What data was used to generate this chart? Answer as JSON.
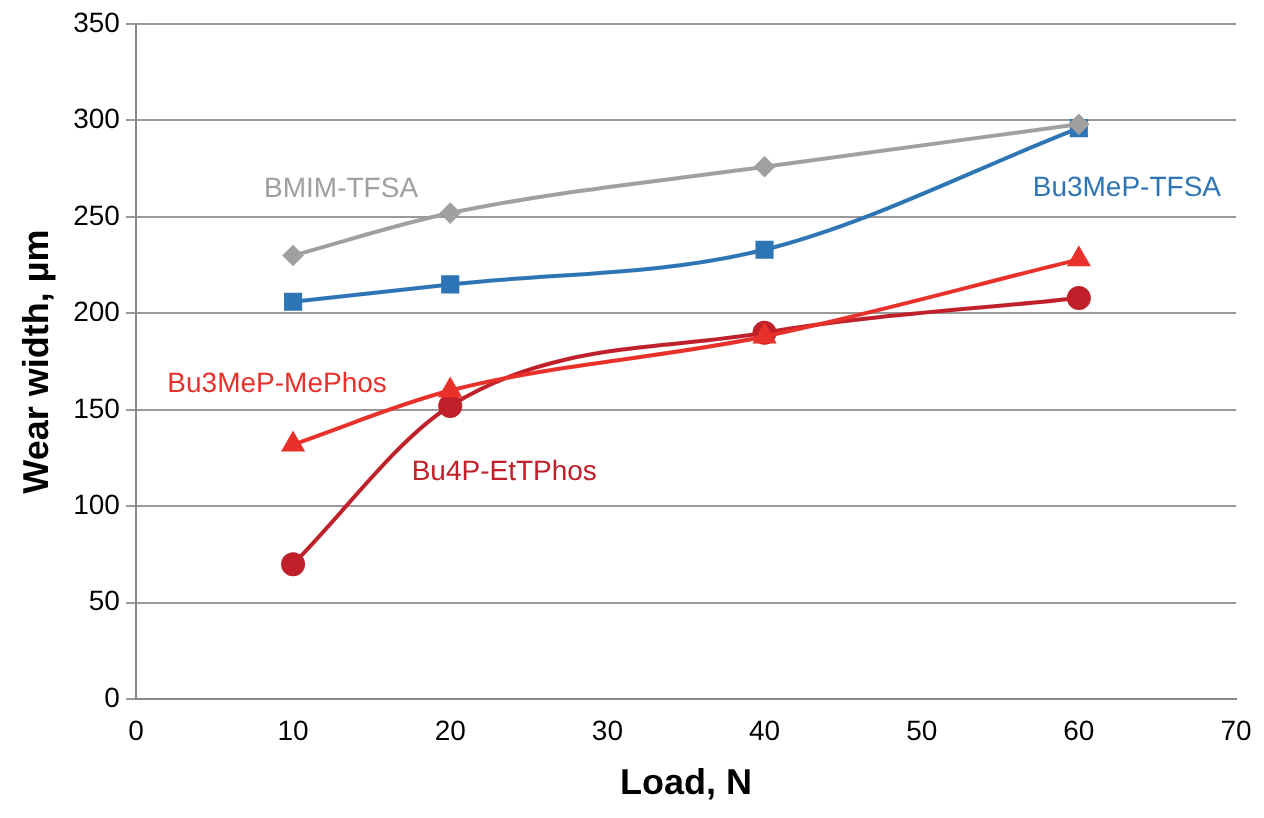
{
  "chart_data": {
    "type": "line",
    "xlabel": "Load, N",
    "ylabel": "Wear width, µm",
    "x": [
      10,
      20,
      40,
      60
    ],
    "xlim": [
      0,
      70
    ],
    "xticks": [
      0,
      10,
      20,
      30,
      40,
      50,
      60,
      70
    ],
    "ylim": [
      0,
      350
    ],
    "yticks": [
      0,
      50,
      100,
      150,
      200,
      250,
      300,
      350
    ],
    "grid": "y",
    "legend": false,
    "series": [
      {
        "name": "BMIM-TFSA",
        "color": "#a0a0a0",
        "marker": "diamond",
        "values": [
          230,
          252,
          276,
          298
        ]
      },
      {
        "name": "Bu3MeP-TFSA",
        "color": "#2e75b6",
        "marker": "square",
        "values": [
          206,
          215,
          233,
          296
        ]
      },
      {
        "name": "Bu3MeP-MePhos",
        "color": "#e8312a",
        "marker": "triangle",
        "values": [
          132,
          160,
          188,
          228
        ]
      },
      {
        "name": "Bu4P-EtTPhos",
        "color": "#c0202a",
        "marker": "circle",
        "values": [
          70,
          152,
          190,
          208
        ]
      }
    ]
  }
}
